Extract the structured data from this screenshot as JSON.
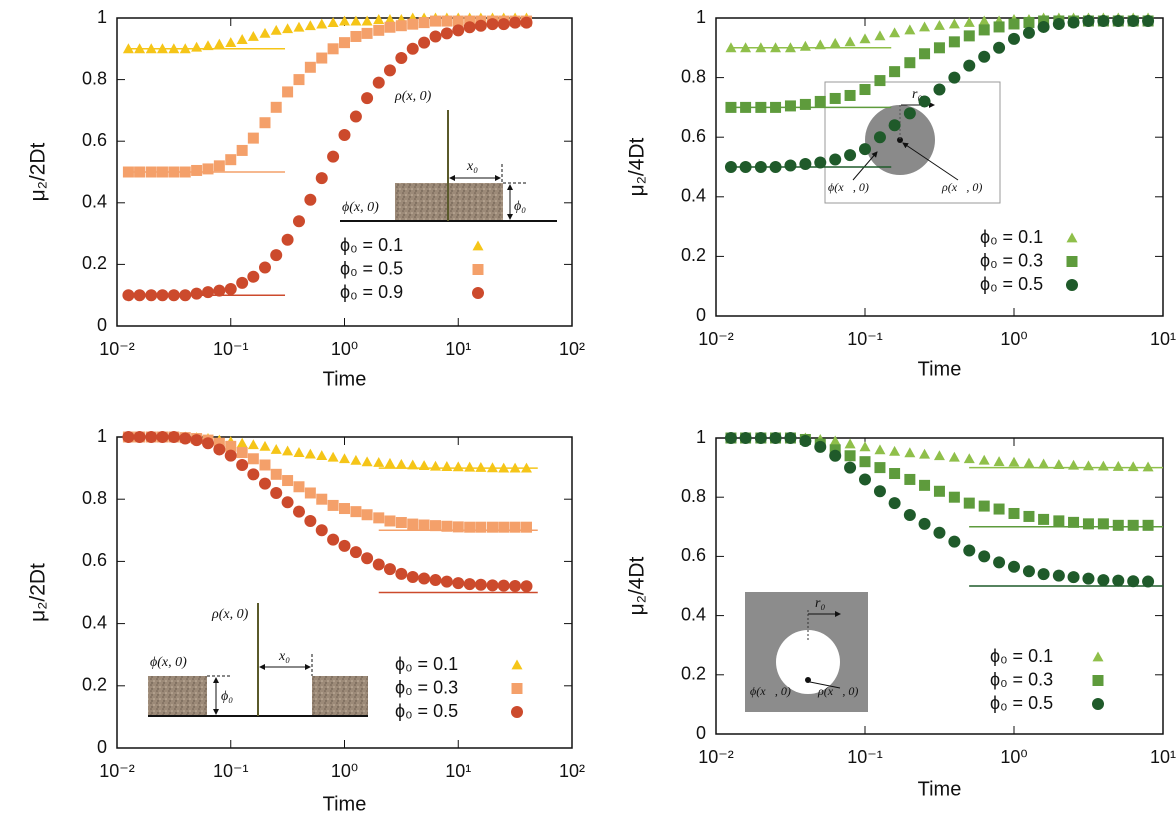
{
  "chart_data": [
    {
      "type": "scatter",
      "xscale": "log",
      "xlabel": "Time",
      "ylabel": "μ₂/2Dt",
      "xlim": [
        0.01,
        100
      ],
      "ylim": [
        0,
        1
      ],
      "xticks": [
        {
          "value": 0.01,
          "label": "10⁻²"
        },
        {
          "value": 0.1,
          "label": "10⁻¹"
        },
        {
          "value": 1,
          "label": "10⁰"
        },
        {
          "value": 10,
          "label": "10¹"
        },
        {
          "value": 100,
          "label": "10²"
        }
      ],
      "yticks": [
        0,
        0.2,
        0.4,
        0.6,
        0.8,
        1
      ],
      "x": [
        0.0126,
        0.0158,
        0.02,
        0.0251,
        0.0316,
        0.0398,
        0.0501,
        0.0631,
        0.0794,
        0.1,
        0.126,
        0.158,
        0.2,
        0.251,
        0.316,
        0.398,
        0.501,
        0.631,
        0.794,
        1,
        1.26,
        1.58,
        2,
        2.51,
        3.16,
        3.98,
        5.01,
        6.31,
        7.94,
        10,
        12.6,
        15.8,
        20,
        25.1,
        31.6,
        39.8
      ],
      "series": [
        {
          "name": "ϕ₀ = 0.1",
          "color": "#f5c518",
          "marker": "triangle",
          "reference": {
            "x": [
              0.0126,
              0.3
            ],
            "y": 0.9
          },
          "values": [
            0.9,
            0.9,
            0.9,
            0.9,
            0.9,
            0.9,
            0.905,
            0.91,
            0.915,
            0.92,
            0.93,
            0.94,
            0.95,
            0.96,
            0.965,
            0.97,
            0.975,
            0.98,
            0.985,
            0.99,
            0.99,
            0.99,
            0.995,
            0.995,
            0.995,
            1,
            1,
            1,
            1,
            1,
            1,
            1,
            1,
            1,
            1,
            1
          ]
        },
        {
          "name": "ϕ₀ = 0.5",
          "color": "#f4a06a",
          "marker": "square",
          "reference": {
            "x": [
              0.0126,
              0.3
            ],
            "y": 0.5
          },
          "values": [
            0.5,
            0.5,
            0.5,
            0.5,
            0.5,
            0.5,
            0.505,
            0.51,
            0.52,
            0.54,
            0.57,
            0.61,
            0.66,
            0.71,
            0.76,
            0.8,
            0.84,
            0.87,
            0.9,
            0.92,
            0.94,
            0.95,
            0.96,
            0.97,
            0.975,
            0.98,
            0.985,
            0.99,
            0.99,
            0.99,
            0.99,
            0.99,
            0.99,
            0.99,
            0.99,
            0.99
          ]
        },
        {
          "name": "ϕ₀ = 0.9",
          "color": "#cc4a2c",
          "marker": "circle",
          "reference": {
            "x": [
              0.0126,
              0.3
            ],
            "y": 0.1
          },
          "values": [
            0.1,
            0.1,
            0.1,
            0.1,
            0.1,
            0.1,
            0.105,
            0.11,
            0.115,
            0.12,
            0.14,
            0.16,
            0.19,
            0.23,
            0.28,
            0.34,
            0.41,
            0.48,
            0.55,
            0.62,
            0.68,
            0.74,
            0.79,
            0.83,
            0.87,
            0.9,
            0.92,
            0.94,
            0.95,
            0.96,
            0.97,
            0.975,
            0.98,
            0.98,
            0.985,
            0.985
          ]
        }
      ],
      "inset": {
        "rho": "ρ(x, 0)",
        "phi": "ϕ(x, 0)",
        "length": "x₀",
        "level": "ϕ₀"
      }
    },
    {
      "type": "scatter",
      "xscale": "log",
      "xlabel": "Time",
      "ylabel": "μ₂/4Dt",
      "xlim": [
        0.01,
        10
      ],
      "ylim": [
        0,
        1
      ],
      "xticks": [
        {
          "value": 0.01,
          "label": "10⁻²"
        },
        {
          "value": 0.1,
          "label": "10⁻¹"
        },
        {
          "value": 1,
          "label": "10⁰"
        },
        {
          "value": 10,
          "label": "10¹"
        }
      ],
      "yticks": [
        0,
        0.2,
        0.4,
        0.6,
        0.8,
        1
      ],
      "x": [
        0.0126,
        0.0158,
        0.02,
        0.0251,
        0.0316,
        0.0398,
        0.0501,
        0.0631,
        0.0794,
        0.1,
        0.126,
        0.158,
        0.2,
        0.251,
        0.316,
        0.398,
        0.501,
        0.631,
        0.794,
        1,
        1.26,
        1.58,
        2,
        2.51,
        3.16,
        3.98,
        5.01,
        6.31,
        7.94
      ],
      "series": [
        {
          "name": "ϕ₀ = 0.1",
          "color": "#8fbf4a",
          "marker": "triangle",
          "reference": {
            "x": [
              0.0126,
              0.15
            ],
            "y": 0.9
          },
          "values": [
            0.9,
            0.9,
            0.9,
            0.9,
            0.9,
            0.905,
            0.91,
            0.915,
            0.92,
            0.93,
            0.94,
            0.95,
            0.96,
            0.97,
            0.975,
            0.98,
            0.985,
            0.99,
            0.99,
            0.995,
            0.995,
            1,
            1,
            1,
            1,
            1,
            1,
            1,
            1
          ]
        },
        {
          "name": "ϕ₀ = 0.3",
          "color": "#5e9b3c",
          "marker": "square",
          "reference": {
            "x": [
              0.0126,
              0.15
            ],
            "y": 0.7
          },
          "values": [
            0.7,
            0.7,
            0.7,
            0.7,
            0.705,
            0.71,
            0.72,
            0.73,
            0.74,
            0.76,
            0.79,
            0.82,
            0.85,
            0.88,
            0.9,
            0.92,
            0.94,
            0.96,
            0.97,
            0.98,
            0.985,
            0.99,
            0.99,
            0.99,
            0.99,
            0.99,
            0.99,
            0.99,
            0.99
          ]
        },
        {
          "name": "ϕ₀ = 0.5",
          "color": "#1f5a2a",
          "marker": "circle",
          "reference": {
            "x": [
              0.0126,
              0.15
            ],
            "y": 0.5
          },
          "values": [
            0.5,
            0.5,
            0.5,
            0.5,
            0.505,
            0.51,
            0.515,
            0.525,
            0.54,
            0.56,
            0.6,
            0.64,
            0.68,
            0.72,
            0.76,
            0.8,
            0.84,
            0.87,
            0.9,
            0.93,
            0.95,
            0.97,
            0.98,
            0.985,
            0.99,
            0.99,
            0.99,
            0.99,
            0.99
          ]
        }
      ],
      "inset": {
        "rho": "ρ(x⃗, 0)",
        "phi": "ϕ(x⃗, 0)",
        "length": "r₀"
      }
    },
    {
      "type": "scatter",
      "xscale": "log",
      "xlabel": "Time",
      "ylabel": "μ₂/2Dt",
      "xlim": [
        0.01,
        100
      ],
      "ylim": [
        0,
        1
      ],
      "xticks": [
        {
          "value": 0.01,
          "label": "10⁻²"
        },
        {
          "value": 0.1,
          "label": "10⁻¹"
        },
        {
          "value": 1,
          "label": "10⁰"
        },
        {
          "value": 10,
          "label": "10¹"
        },
        {
          "value": 100,
          "label": "10²"
        }
      ],
      "yticks": [
        0,
        0.2,
        0.4,
        0.6,
        0.8,
        1
      ],
      "x": [
        0.0126,
        0.0158,
        0.02,
        0.0251,
        0.0316,
        0.0398,
        0.0501,
        0.0631,
        0.0794,
        0.1,
        0.126,
        0.158,
        0.2,
        0.251,
        0.316,
        0.398,
        0.501,
        0.631,
        0.794,
        1,
        1.26,
        1.58,
        2,
        2.51,
        3.16,
        3.98,
        5.01,
        6.31,
        7.94,
        10,
        12.6,
        15.8,
        20,
        25.1,
        31.6,
        39.8
      ],
      "series": [
        {
          "name": "ϕ₀ = 0.1",
          "color": "#f5c518",
          "marker": "triangle",
          "reference": {
            "x": [
              2,
              50
            ],
            "y": 0.9
          },
          "values": [
            1,
            1,
            1,
            1,
            1,
            1,
            0.998,
            0.995,
            0.99,
            0.985,
            0.98,
            0.975,
            0.97,
            0.96,
            0.955,
            0.95,
            0.945,
            0.94,
            0.935,
            0.93,
            0.925,
            0.92,
            0.918,
            0.915,
            0.912,
            0.91,
            0.908,
            0.906,
            0.905,
            0.904,
            0.903,
            0.902,
            0.901,
            0.9,
            0.9,
            0.9
          ]
        },
        {
          "name": "ϕ₀ = 0.3",
          "color": "#f4a06a",
          "marker": "square",
          "reference": {
            "x": [
              2,
              50
            ],
            "y": 0.7
          },
          "values": [
            1,
            1,
            1,
            1,
            1,
            0.998,
            0.995,
            0.99,
            0.98,
            0.97,
            0.95,
            0.93,
            0.91,
            0.88,
            0.86,
            0.84,
            0.82,
            0.8,
            0.78,
            0.77,
            0.76,
            0.75,
            0.74,
            0.73,
            0.725,
            0.72,
            0.717,
            0.715,
            0.713,
            0.711,
            0.71,
            0.71,
            0.71,
            0.71,
            0.71,
            0.71
          ]
        },
        {
          "name": "ϕ₀ = 0.5",
          "color": "#cc4a2c",
          "marker": "circle",
          "reference": {
            "x": [
              2,
              50
            ],
            "y": 0.5
          },
          "values": [
            1,
            1,
            1,
            1,
            1,
            0.995,
            0.99,
            0.98,
            0.96,
            0.94,
            0.91,
            0.88,
            0.85,
            0.82,
            0.79,
            0.76,
            0.73,
            0.7,
            0.67,
            0.65,
            0.63,
            0.61,
            0.59,
            0.575,
            0.56,
            0.55,
            0.545,
            0.54,
            0.535,
            0.53,
            0.527,
            0.525,
            0.523,
            0.522,
            0.521,
            0.52
          ]
        }
      ],
      "inset": {
        "rho": "ρ(x, 0)",
        "phi": "ϕ(x, 0)",
        "length": "x₀",
        "level": "ϕ₀"
      }
    },
    {
      "type": "scatter",
      "xscale": "log",
      "xlabel": "Time",
      "ylabel": "μ₂/4Dt",
      "xlim": [
        0.01,
        10
      ],
      "ylim": [
        0,
        1
      ],
      "xticks": [
        {
          "value": 0.01,
          "label": "10⁻²"
        },
        {
          "value": 0.1,
          "label": "10⁻¹"
        },
        {
          "value": 1,
          "label": "10⁰"
        },
        {
          "value": 10,
          "label": "10¹"
        }
      ],
      "yticks": [
        0,
        0.2,
        0.4,
        0.6,
        0.8,
        1
      ],
      "x": [
        0.0126,
        0.0158,
        0.02,
        0.0251,
        0.0316,
        0.0398,
        0.0501,
        0.0631,
        0.0794,
        0.1,
        0.126,
        0.158,
        0.2,
        0.251,
        0.316,
        0.398,
        0.501,
        0.631,
        0.794,
        1,
        1.26,
        1.58,
        2,
        2.51,
        3.16,
        3.98,
        5.01,
        6.31,
        7.94
      ],
      "series": [
        {
          "name": "ϕ₀ = 0.1",
          "color": "#8fbf4a",
          "marker": "triangle",
          "reference": {
            "x": [
              0.5,
              10
            ],
            "y": 0.9
          },
          "values": [
            1,
            1,
            1,
            1,
            1,
            1,
            0.995,
            0.99,
            0.98,
            0.97,
            0.96,
            0.955,
            0.95,
            0.945,
            0.94,
            0.935,
            0.93,
            0.925,
            0.92,
            0.918,
            0.915,
            0.912,
            0.91,
            0.908,
            0.906,
            0.905,
            0.904,
            0.903,
            0.902
          ]
        },
        {
          "name": "ϕ₀ = 0.3",
          "color": "#5e9b3c",
          "marker": "square",
          "reference": {
            "x": [
              0.5,
              10
            ],
            "y": 0.7
          },
          "values": [
            1,
            1,
            1,
            1,
            1,
            0.995,
            0.98,
            0.96,
            0.94,
            0.92,
            0.9,
            0.88,
            0.86,
            0.84,
            0.82,
            0.8,
            0.78,
            0.77,
            0.76,
            0.745,
            0.735,
            0.725,
            0.72,
            0.715,
            0.71,
            0.71,
            0.705,
            0.705,
            0.705
          ]
        },
        {
          "name": "ϕ₀ = 0.5",
          "color": "#1f5a2a",
          "marker": "circle",
          "reference": {
            "x": [
              0.5,
              10
            ],
            "y": 0.5
          },
          "values": [
            1,
            1,
            1,
            1,
            1,
            0.99,
            0.97,
            0.94,
            0.9,
            0.86,
            0.82,
            0.78,
            0.74,
            0.71,
            0.68,
            0.65,
            0.62,
            0.6,
            0.58,
            0.565,
            0.55,
            0.54,
            0.535,
            0.53,
            0.525,
            0.52,
            0.518,
            0.516,
            0.515
          ]
        }
      ],
      "inset": {
        "rho": "ρ(x⃗, 0)",
        "phi": "ϕ(x⃗, 0)",
        "length": "r₀"
      }
    }
  ]
}
